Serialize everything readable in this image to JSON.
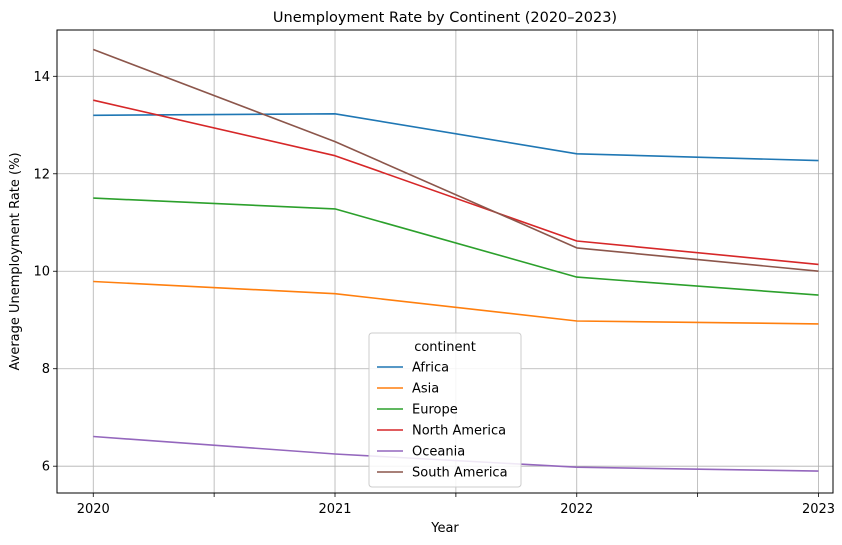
{
  "chart_data": {
    "type": "line",
    "title": "Unemployment Rate by Continent (2020–2023)",
    "xlabel": "Year",
    "ylabel": "Average Unemployment Rate (%)",
    "x": [
      2020,
      2021,
      2022,
      2023
    ],
    "xticks": [
      2020,
      2020.5,
      2021,
      2021.5,
      2022,
      2022.5,
      2023
    ],
    "xtick_labels": [
      "2020",
      "",
      "2021",
      "",
      "2022",
      "",
      "2023"
    ],
    "xlim": [
      2019.85,
      2023.06
    ],
    "yticks": [
      6,
      8,
      10,
      12,
      14
    ],
    "ylim": [
      5.45,
      14.95
    ],
    "grid": true,
    "legend": {
      "title": "continent",
      "placement": "lower-center"
    },
    "series": [
      {
        "name": "Africa",
        "color": "#1f77b4",
        "values": [
          13.2,
          13.23,
          12.41,
          12.27
        ]
      },
      {
        "name": "Asia",
        "color": "#ff7f0e",
        "values": [
          9.79,
          9.54,
          8.98,
          8.92
        ]
      },
      {
        "name": "Europe",
        "color": "#2ca02c",
        "values": [
          11.5,
          11.28,
          9.88,
          9.51
        ]
      },
      {
        "name": "North America",
        "color": "#d62728",
        "values": [
          13.51,
          12.37,
          10.62,
          10.14
        ]
      },
      {
        "name": "Oceania",
        "color": "#9467bd",
        "values": [
          6.61,
          6.25,
          5.98,
          5.9
        ]
      },
      {
        "name": "South America",
        "color": "#8c564b",
        "values": [
          14.55,
          12.66,
          10.48,
          10.0
        ]
      }
    ]
  }
}
